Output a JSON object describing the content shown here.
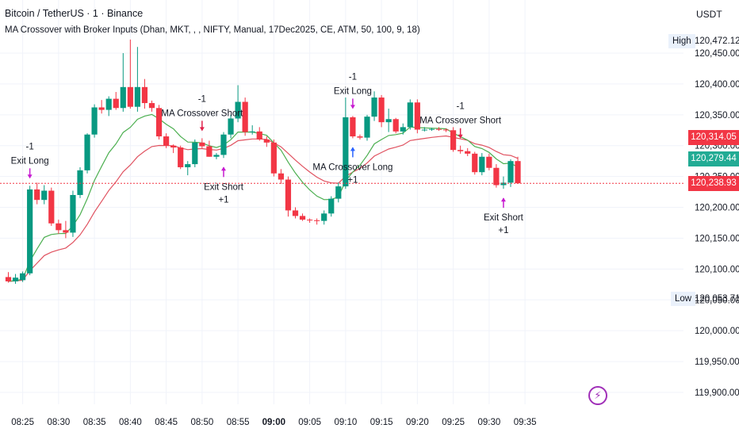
{
  "header": {
    "title": "Bitcoin / TetherUS · 1 · Binance",
    "indicator": "MA Crossover with Broker Inputs (Dhan, MKT, , , NIFTY, Manual, 17Dec2025, CE, ATM, 50, 100, 9, 18)",
    "currency": "USDT"
  },
  "high": {
    "label": "High",
    "value": "120,472.12"
  },
  "low": {
    "label": "Low",
    "value": "120,053.71"
  },
  "price_tags": [
    {
      "value": "120,314.05",
      "color": "#f23645"
    },
    {
      "value": "120,279.44",
      "color": "#22ab94"
    },
    {
      "value": "120,238.93",
      "color": "#f23645"
    }
  ],
  "icons": {
    "alert": "lightning-bolt-icon"
  },
  "chart_data": {
    "type": "candlestick",
    "symbol": "Bitcoin / TetherUS · 1 · Binance",
    "timeframe": "1",
    "y_ticks": [
      120450,
      120400,
      120350,
      120300,
      120250,
      120200,
      120150,
      120100,
      120050,
      120000,
      119950,
      119900
    ],
    "y_tick_labels": [
      "120,450.00",
      "120,400.00",
      "120,350.00",
      "120,300.00",
      "120,250.00",
      "120,200.00",
      "120,150.00",
      "120,100.00",
      "120,050.00",
      "120,000.00",
      "119,950.00",
      "119,900.00"
    ],
    "x_ticks": [
      {
        "index": 2,
        "label": "08:25"
      },
      {
        "index": 7,
        "label": "08:30"
      },
      {
        "index": 12,
        "label": "08:35"
      },
      {
        "index": 17,
        "label": "08:40"
      },
      {
        "index": 22,
        "label": "08:45"
      },
      {
        "index": 27,
        "label": "08:50"
      },
      {
        "index": 32,
        "label": "08:55"
      },
      {
        "index": 37,
        "label": "09:00",
        "bold": true
      },
      {
        "index": 42,
        "label": "09:05"
      },
      {
        "index": 47,
        "label": "09:10"
      },
      {
        "index": 52,
        "label": "09:15"
      },
      {
        "index": 57,
        "label": "09:20"
      },
      {
        "index": 62,
        "label": "09:25"
      },
      {
        "index": 67,
        "label": "09:30"
      },
      {
        "index": 72,
        "label": "09:35"
      }
    ],
    "candles": [
      {
        "o": 120087,
        "h": 120095,
        "l": 120078,
        "c": 120080
      },
      {
        "o": 120080,
        "h": 120092,
        "l": 120076,
        "c": 120086
      },
      {
        "o": 120082,
        "h": 120096,
        "l": 120079,
        "c": 120093
      },
      {
        "o": 120093,
        "h": 120235,
        "l": 120090,
        "c": 120229
      },
      {
        "o": 120229,
        "h": 120240,
        "l": 120205,
        "c": 120212
      },
      {
        "o": 120212,
        "h": 120236,
        "l": 120205,
        "c": 120227
      },
      {
        "o": 120227,
        "h": 120232,
        "l": 120170,
        "c": 120174
      },
      {
        "o": 120174,
        "h": 120180,
        "l": 120157,
        "c": 120163
      },
      {
        "o": 120163,
        "h": 120178,
        "l": 120150,
        "c": 120159
      },
      {
        "o": 120159,
        "h": 120227,
        "l": 120152,
        "c": 120220
      },
      {
        "o": 120220,
        "h": 120265,
        "l": 120215,
        "c": 120260
      },
      {
        "o": 120260,
        "h": 120320,
        "l": 120255,
        "c": 120318
      },
      {
        "o": 120318,
        "h": 120367,
        "l": 120313,
        "c": 120362
      },
      {
        "o": 120362,
        "h": 120374,
        "l": 120352,
        "c": 120358
      },
      {
        "o": 120358,
        "h": 120380,
        "l": 120348,
        "c": 120376
      },
      {
        "o": 120376,
        "h": 120387,
        "l": 120358,
        "c": 120361
      },
      {
        "o": 120361,
        "h": 120450,
        "l": 120355,
        "c": 120395
      },
      {
        "o": 120395,
        "h": 120472,
        "l": 120360,
        "c": 120363
      },
      {
        "o": 120363,
        "h": 120460,
        "l": 120355,
        "c": 120395
      },
      {
        "o": 120395,
        "h": 120408,
        "l": 120360,
        "c": 120369
      },
      {
        "o": 120369,
        "h": 120373,
        "l": 120355,
        "c": 120361
      },
      {
        "o": 120361,
        "h": 120366,
        "l": 120310,
        "c": 120315
      },
      {
        "o": 120315,
        "h": 120320,
        "l": 120296,
        "c": 120300
      },
      {
        "o": 120300,
        "h": 120302,
        "l": 120288,
        "c": 120297
      },
      {
        "o": 120297,
        "h": 120300,
        "l": 120262,
        "c": 120265
      },
      {
        "o": 120265,
        "h": 120275,
        "l": 120252,
        "c": 120270
      },
      {
        "o": 120270,
        "h": 120310,
        "l": 120265,
        "c": 120305
      },
      {
        "o": 120305,
        "h": 120312,
        "l": 120295,
        "c": 120299
      },
      {
        "o": 120299,
        "h": 120308,
        "l": 120282,
        "c": 120282
      },
      {
        "o": 120282,
        "h": 120288,
        "l": 120278,
        "c": 120285
      },
      {
        "o": 120285,
        "h": 120322,
        "l": 120280,
        "c": 120318
      },
      {
        "o": 120318,
        "h": 120350,
        "l": 120312,
        "c": 120344
      },
      {
        "o": 120344,
        "h": 120398,
        "l": 120338,
        "c": 120371
      },
      {
        "o": 120371,
        "h": 120378,
        "l": 120316,
        "c": 120322
      },
      {
        "o": 120322,
        "h": 120333,
        "l": 120318,
        "c": 120323
      },
      {
        "o": 120323,
        "h": 120330,
        "l": 120308,
        "c": 120310
      },
      {
        "o": 120310,
        "h": 120315,
        "l": 120298,
        "c": 120305
      },
      {
        "o": 120305,
        "h": 120310,
        "l": 120250,
        "c": 120255
      },
      {
        "o": 120255,
        "h": 120262,
        "l": 120238,
        "c": 120245
      },
      {
        "o": 120245,
        "h": 120250,
        "l": 120185,
        "c": 120195
      },
      {
        "o": 120195,
        "h": 120200,
        "l": 120182,
        "c": 120186
      },
      {
        "o": 120186,
        "h": 120190,
        "l": 120178,
        "c": 120180
      },
      {
        "o": 120180,
        "h": 120182,
        "l": 120175,
        "c": 120179
      },
      {
        "o": 120179,
        "h": 120182,
        "l": 120172,
        "c": 120178
      },
      {
        "o": 120178,
        "h": 120195,
        "l": 120172,
        "c": 120190
      },
      {
        "o": 120190,
        "h": 120218,
        "l": 120185,
        "c": 120214
      },
      {
        "o": 120214,
        "h": 120240,
        "l": 120208,
        "c": 120234
      },
      {
        "o": 120234,
        "h": 120378,
        "l": 120230,
        "c": 120346
      },
      {
        "o": 120346,
        "h": 120348,
        "l": 120312,
        "c": 120315
      },
      {
        "o": 120315,
        "h": 120318,
        "l": 120310,
        "c": 120313
      },
      {
        "o": 120313,
        "h": 120350,
        "l": 120308,
        "c": 120347
      },
      {
        "o": 120347,
        "h": 120388,
        "l": 120340,
        "c": 120378
      },
      {
        "o": 120378,
        "h": 120382,
        "l": 120330,
        "c": 120338
      },
      {
        "o": 120338,
        "h": 120360,
        "l": 120322,
        "c": 120343
      },
      {
        "o": 120343,
        "h": 120345,
        "l": 120320,
        "c": 120323
      },
      {
        "o": 120323,
        "h": 120336,
        "l": 120318,
        "c": 120330
      },
      {
        "o": 120330,
        "h": 120375,
        "l": 120326,
        "c": 120370
      },
      {
        "o": 120370,
        "h": 120375,
        "l": 120320,
        "c": 120326
      },
      {
        "o": 120326,
        "h": 120330,
        "l": 120323,
        "c": 120326
      },
      {
        "o": 120326,
        "h": 120329,
        "l": 120324,
        "c": 120327
      },
      {
        "o": 120327,
        "h": 120330,
        "l": 120324,
        "c": 120326
      },
      {
        "o": 120326,
        "h": 120328,
        "l": 120322,
        "c": 120325
      },
      {
        "o": 120325,
        "h": 120330,
        "l": 120290,
        "c": 120293
      },
      {
        "o": 120293,
        "h": 120300,
        "l": 120287,
        "c": 120291
      },
      {
        "o": 120291,
        "h": 120296,
        "l": 120283,
        "c": 120287
      },
      {
        "o": 120287,
        "h": 120290,
        "l": 120253,
        "c": 120257
      },
      {
        "o": 120257,
        "h": 120288,
        "l": 120252,
        "c": 120282
      },
      {
        "o": 120282,
        "h": 120287,
        "l": 120260,
        "c": 120264
      },
      {
        "o": 120264,
        "h": 120270,
        "l": 120232,
        "c": 120236
      },
      {
        "o": 120236,
        "h": 120250,
        "l": 120230,
        "c": 120240
      },
      {
        "o": 120240,
        "h": 120278,
        "l": 120233,
        "c": 120275
      },
      {
        "o": 120275,
        "h": 120282,
        "l": 120238,
        "c": 120239
      }
    ],
    "ma_fast": {
      "color": "#4caf50"
    },
    "ma_slow": {
      "color": "#e05260"
    },
    "signals": [
      {
        "index": 3,
        "side": "sell",
        "lines": [
          "-1",
          "Exit Long"
        ]
      },
      {
        "index": 27,
        "side": "sell",
        "lines": [
          "-1",
          "MA Crossover Short"
        ]
      },
      {
        "index": 30,
        "side": "buy",
        "lines": [
          "Exit Short",
          "+1"
        ]
      },
      {
        "index": 48,
        "side": "sell",
        "lines": [
          "-1",
          "Exit Long"
        ]
      },
      {
        "index": 48,
        "side": "buy",
        "lines": [
          "MA Crossover Long",
          "+1"
        ]
      },
      {
        "index": 63,
        "side": "sell",
        "lines": [
          "-1",
          "MA Crossover Short"
        ]
      },
      {
        "index": 69,
        "side": "buy",
        "lines": [
          "Exit Short",
          "+1"
        ]
      }
    ],
    "last_price": 120238.93,
    "high": 120472.12,
    "low": 120053.71
  }
}
